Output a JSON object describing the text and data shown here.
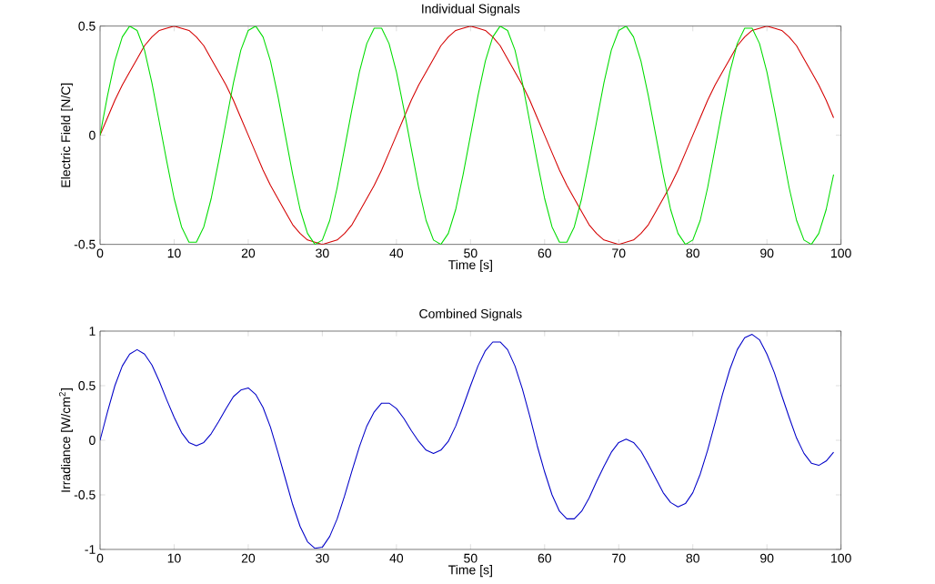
{
  "chart_data": [
    {
      "type": "line",
      "title": "Individual Signals",
      "xlabel": "Time [s]",
      "ylabel": "Electric Field [N/C]",
      "xlim": [
        0,
        100
      ],
      "ylim": [
        -0.5,
        0.5
      ],
      "xticks": [
        0,
        10,
        20,
        30,
        40,
        50,
        60,
        70,
        80,
        90,
        100
      ],
      "yticks": [
        -0.5,
        0,
        0.5
      ],
      "grid": false,
      "marker": "none",
      "line_style": "solid",
      "x": [
        0,
        1,
        2,
        3,
        4,
        5,
        6,
        7,
        8,
        9,
        10,
        11,
        12,
        13,
        14,
        15,
        16,
        17,
        18,
        19,
        20,
        21,
        22,
        23,
        24,
        25,
        26,
        27,
        28,
        29,
        30,
        31,
        32,
        33,
        34,
        35,
        36,
        37,
        38,
        39,
        40,
        41,
        42,
        43,
        44,
        45,
        46,
        47,
        48,
        49,
        50,
        51,
        52,
        53,
        54,
        55,
        56,
        57,
        58,
        59,
        60,
        61,
        62,
        63,
        64,
        65,
        66,
        67,
        68,
        69,
        70,
        71,
        72,
        73,
        74,
        75,
        76,
        77,
        78,
        79,
        80,
        81,
        82,
        83,
        84,
        85,
        86,
        87,
        88,
        89,
        90,
        91,
        92,
        93,
        94,
        95,
        96,
        97,
        98,
        99
      ],
      "series": [
        {
          "color": "#d40000",
          "values": [
            0,
            0.08,
            0.16,
            0.23,
            0.29,
            0.35,
            0.41,
            0.45,
            0.48,
            0.49,
            0.5,
            0.49,
            0.48,
            0.45,
            0.41,
            0.35,
            0.29,
            0.23,
            0.16,
            0.08,
            0,
            -0.08,
            -0.16,
            -0.23,
            -0.29,
            -0.35,
            -0.41,
            -0.45,
            -0.48,
            -0.49,
            -0.5,
            -0.49,
            -0.48,
            -0.45,
            -0.41,
            -0.35,
            -0.29,
            -0.23,
            -0.16,
            -0.08,
            0,
            0.08,
            0.16,
            0.23,
            0.29,
            0.35,
            0.41,
            0.45,
            0.48,
            0.49,
            0.5,
            0.49,
            0.48,
            0.45,
            0.41,
            0.35,
            0.29,
            0.23,
            0.16,
            0.08,
            0,
            -0.08,
            -0.16,
            -0.23,
            -0.29,
            -0.35,
            -0.41,
            -0.45,
            -0.48,
            -0.49,
            -0.5,
            -0.49,
            -0.48,
            -0.45,
            -0.41,
            -0.35,
            -0.29,
            -0.23,
            -0.16,
            -0.08,
            0,
            0.08,
            0.16,
            0.23,
            0.29,
            0.35,
            0.41,
            0.45,
            0.48,
            0.49,
            0.5,
            0.49,
            0.48,
            0.45,
            0.41,
            0.35,
            0.29,
            0.23,
            0.16,
            0.08
          ]
        },
        {
          "color": "#00dc00",
          "values": [
            0,
            0.18,
            0.34,
            0.45,
            0.5,
            0.48,
            0.39,
            0.24,
            0.06,
            -0.12,
            -0.29,
            -0.42,
            -0.49,
            -0.49,
            -0.42,
            -0.29,
            -0.12,
            0.06,
            0.24,
            0.39,
            0.48,
            0.5,
            0.45,
            0.34,
            0.18,
            0,
            -0.18,
            -0.34,
            -0.45,
            -0.5,
            -0.48,
            -0.39,
            -0.24,
            -0.06,
            0.12,
            0.29,
            0.42,
            0.49,
            0.49,
            0.42,
            0.29,
            0.12,
            -0.06,
            -0.24,
            -0.39,
            -0.48,
            -0.5,
            -0.45,
            -0.34,
            -0.18,
            0,
            0.18,
            0.34,
            0.45,
            0.5,
            0.48,
            0.39,
            0.24,
            0.06,
            -0.12,
            -0.29,
            -0.42,
            -0.49,
            -0.49,
            -0.42,
            -0.29,
            -0.12,
            0.06,
            0.24,
            0.39,
            0.48,
            0.5,
            0.45,
            0.34,
            0.18,
            0,
            -0.18,
            -0.34,
            -0.45,
            -0.5,
            -0.48,
            -0.39,
            -0.24,
            -0.06,
            0.12,
            0.29,
            0.42,
            0.49,
            0.49,
            0.42,
            0.29,
            0.12,
            -0.06,
            -0.24,
            -0.39,
            -0.48,
            -0.5,
            -0.45,
            -0.34,
            -0.18
          ]
        }
      ]
    },
    {
      "type": "line",
      "title": "Combined Signals",
      "xlabel": "Time [s]",
      "ylabel": "Irradiance [W/cm$^{2}$]",
      "xlim": [
        0,
        100
      ],
      "ylim": [
        -1,
        1
      ],
      "xticks": [
        0,
        10,
        20,
        30,
        40,
        50,
        60,
        70,
        80,
        90,
        100
      ],
      "yticks": [
        -1,
        -0.5,
        0,
        0.5,
        1
      ],
      "grid": false,
      "marker": "none",
      "line_style": "solid",
      "x": [
        0,
        1,
        2,
        3,
        4,
        5,
        6,
        7,
        8,
        9,
        10,
        11,
        12,
        13,
        14,
        15,
        16,
        17,
        18,
        19,
        20,
        21,
        22,
        23,
        24,
        25,
        26,
        27,
        28,
        29,
        30,
        31,
        32,
        33,
        34,
        35,
        36,
        37,
        38,
        39,
        40,
        41,
        42,
        43,
        44,
        45,
        46,
        47,
        48,
        49,
        50,
        51,
        52,
        53,
        54,
        55,
        56,
        57,
        58,
        59,
        60,
        61,
        62,
        63,
        64,
        65,
        66,
        67,
        68,
        69,
        70,
        71,
        72,
        73,
        74,
        75,
        76,
        77,
        78,
        79,
        80,
        81,
        82,
        83,
        84,
        85,
        86,
        87,
        88,
        89,
        90,
        91,
        92,
        93,
        94,
        95,
        96,
        97,
        98,
        99
      ],
      "series": [
        {
          "color": "#0000c8",
          "values": [
            0,
            0.26,
            0.5,
            0.68,
            0.79,
            0.83,
            0.79,
            0.69,
            0.54,
            0.37,
            0.21,
            0.07,
            -0.02,
            -0.05,
            -0.02,
            0.06,
            0.17,
            0.29,
            0.4,
            0.46,
            0.48,
            0.42,
            0.3,
            0.12,
            -0.11,
            -0.35,
            -0.59,
            -0.79,
            -0.93,
            -0.99,
            -0.98,
            -0.88,
            -0.72,
            -0.51,
            -0.28,
            -0.06,
            0.13,
            0.26,
            0.34,
            0.34,
            0.29,
            0.2,
            0.09,
            -0.01,
            -0.09,
            -0.12,
            -0.09,
            -0.01,
            0.13,
            0.31,
            0.5,
            0.68,
            0.82,
            0.9,
            0.9,
            0.83,
            0.68,
            0.47,
            0.22,
            -0.05,
            -0.29,
            -0.5,
            -0.65,
            -0.72,
            -0.72,
            -0.65,
            -0.53,
            -0.38,
            -0.24,
            -0.11,
            -0.02,
            0.01,
            -0.02,
            -0.1,
            -0.22,
            -0.35,
            -0.48,
            -0.57,
            -0.61,
            -0.58,
            -0.48,
            -0.31,
            -0.09,
            0.16,
            0.42,
            0.65,
            0.83,
            0.94,
            0.97,
            0.92,
            0.79,
            0.62,
            0.41,
            0.21,
            0.02,
            -0.12,
            -0.21,
            -0.23,
            -0.19,
            -0.11
          ]
        }
      ]
    }
  ]
}
